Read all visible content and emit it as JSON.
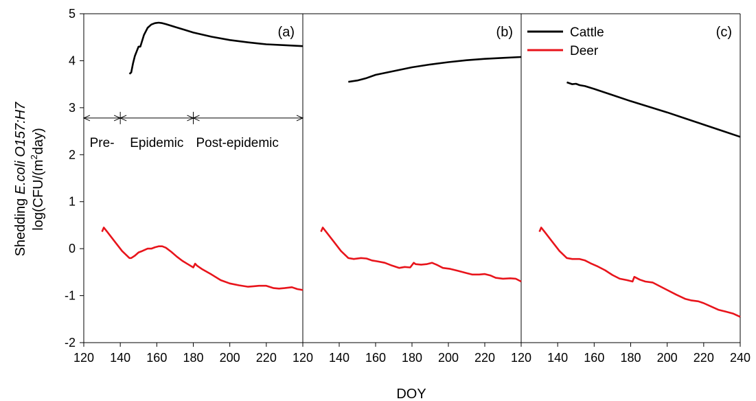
{
  "chart_data": {
    "type": "line",
    "ylabel_prefix": "Shedding ",
    "ylabel_italic": "E.coli O157:H7",
    "ylabel_units_pre": "log(CFU/(m",
    "ylabel_units_sup": "2",
    "ylabel_units_post": "day)",
    "xlabel": "DOY",
    "ylim": [
      -2,
      5
    ],
    "yticks": [
      "-2",
      "-1",
      "0",
      "1",
      "2",
      "3",
      "4",
      "5"
    ],
    "x_tick_labels": [
      "120",
      "140",
      "160",
      "180",
      "200",
      "220",
      "120",
      "140",
      "160",
      "180",
      "200",
      "220",
      "120",
      "140",
      "160",
      "180",
      "200",
      "220",
      "240"
    ],
    "legend": {
      "placement": "top-left of panel (c)",
      "entries": [
        {
          "name": "Cattle",
          "color": "#000000"
        },
        {
          "name": "Deer",
          "color": "#e8141b"
        }
      ]
    },
    "phases": {
      "arrow_y": 2.78,
      "boundaries_doy": [
        120,
        140,
        180,
        240
      ],
      "labels": [
        "Pre-",
        "Epidemic",
        "Post-epidemic"
      ]
    },
    "panels": [
      {
        "label": "(a)",
        "xlim": [
          120,
          240
        ],
        "series": [
          {
            "name": "Cattle",
            "color": "#000000",
            "x": [
              145,
              146,
              147,
              148,
              149,
              150,
              151,
              153,
              155,
              157,
              159,
              161,
              163,
              165,
              170,
              175,
              180,
              190,
              200,
              210,
              220,
              230,
              240
            ],
            "y": [
              3.72,
              3.75,
              3.95,
              4.1,
              4.2,
              4.3,
              4.3,
              4.55,
              4.7,
              4.77,
              4.8,
              4.81,
              4.8,
              4.78,
              4.72,
              4.66,
              4.6,
              4.51,
              4.44,
              4.39,
              4.35,
              4.33,
              4.31
            ]
          },
          {
            "name": "Deer",
            "color": "#e8141b",
            "x": [
              130,
              131,
              133,
              137,
              141,
              145,
              146,
              148,
              150,
              152,
              155,
              157,
              159,
              161,
              163,
              165,
              168,
              171,
              174,
              177,
              180,
              181,
              182,
              185,
              190,
              195,
              200,
              205,
              210,
              213,
              216,
              220,
              224,
              227,
              230,
              234,
              237,
              240
            ],
            "y": [
              0.36,
              0.45,
              0.35,
              0.15,
              -0.05,
              -0.2,
              -0.2,
              -0.15,
              -0.08,
              -0.05,
              0.0,
              0.0,
              0.03,
              0.05,
              0.05,
              0.02,
              -0.07,
              -0.17,
              -0.26,
              -0.33,
              -0.4,
              -0.32,
              -0.36,
              -0.44,
              -0.55,
              -0.67,
              -0.74,
              -0.78,
              -0.81,
              -0.8,
              -0.79,
              -0.79,
              -0.84,
              -0.85,
              -0.84,
              -0.82,
              -0.86,
              -0.88
            ]
          }
        ]
      },
      {
        "label": "(b)",
        "xlim": [
          120,
          240
        ],
        "series": [
          {
            "name": "Cattle",
            "color": "#000000",
            "x": [
              145,
              150,
              155,
              160,
              170,
              180,
              190,
              200,
              210,
              220,
              230,
              240
            ],
            "y": [
              3.55,
              3.58,
              3.63,
              3.7,
              3.78,
              3.86,
              3.92,
              3.97,
              4.01,
              4.04,
              4.06,
              4.08
            ]
          },
          {
            "name": "Deer",
            "color": "#e8141b",
            "x": [
              130,
              131,
              133,
              137,
              141,
              145,
              148,
              152,
              155,
              158,
              161,
              165,
              169,
              173,
              176,
              179,
              181,
              182,
              185,
              188,
              191,
              194,
              197,
              201,
              205,
              210,
              213,
              217,
              220,
              223,
              226,
              230,
              234,
              237,
              240
            ],
            "y": [
              0.36,
              0.45,
              0.35,
              0.15,
              -0.05,
              -0.2,
              -0.22,
              -0.2,
              -0.21,
              -0.25,
              -0.27,
              -0.3,
              -0.36,
              -0.41,
              -0.39,
              -0.4,
              -0.3,
              -0.33,
              -0.34,
              -0.33,
              -0.3,
              -0.35,
              -0.41,
              -0.43,
              -0.47,
              -0.52,
              -0.55,
              -0.55,
              -0.54,
              -0.57,
              -0.62,
              -0.64,
              -0.63,
              -0.64,
              -0.7
            ]
          }
        ]
      },
      {
        "label": "(c)",
        "xlim": [
          120,
          240
        ],
        "series": [
          {
            "name": "Cattle",
            "color": "#000000",
            "x": [
              145,
              148,
              150,
              152,
              155,
              160,
              170,
              180,
              190,
              200,
              210,
              220,
              230,
              240
            ],
            "y": [
              3.54,
              3.5,
              3.51,
              3.48,
              3.46,
              3.4,
              3.27,
              3.14,
              3.02,
              2.9,
              2.77,
              2.64,
              2.51,
              2.38
            ]
          },
          {
            "name": "Deer",
            "color": "#e8141b",
            "x": [
              130,
              131,
              133,
              137,
              141,
              145,
              148,
              152,
              155,
              158,
              162,
              166,
              170,
              174,
              178,
              181,
              182,
              185,
              188,
              192,
              196,
              200,
              205,
              210,
              213,
              217,
              220,
              224,
              228,
              232,
              236,
              240
            ],
            "y": [
              0.36,
              0.45,
              0.35,
              0.15,
              -0.05,
              -0.2,
              -0.22,
              -0.22,
              -0.25,
              -0.31,
              -0.38,
              -0.46,
              -0.56,
              -0.64,
              -0.67,
              -0.7,
              -0.6,
              -0.66,
              -0.7,
              -0.72,
              -0.8,
              -0.88,
              -0.98,
              -1.07,
              -1.1,
              -1.12,
              -1.16,
              -1.23,
              -1.3,
              -1.34,
              -1.38,
              -1.45
            ]
          }
        ]
      }
    ]
  }
}
